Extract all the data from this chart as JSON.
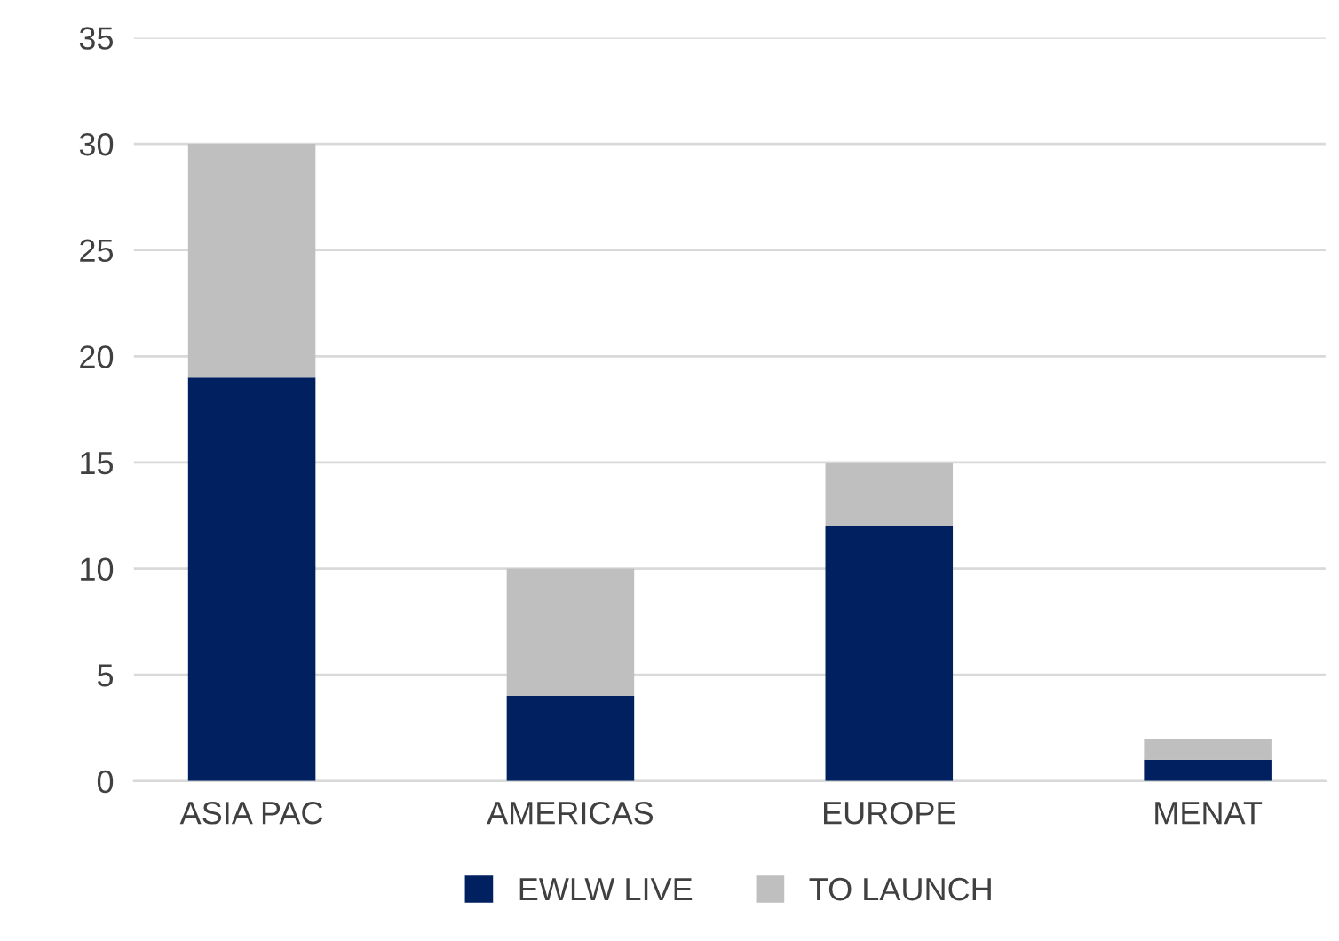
{
  "chart_data": {
    "type": "bar",
    "stacked": true,
    "categories": [
      "ASIA PAC",
      "AMERICAS",
      "EUROPE",
      "MENAT"
    ],
    "series": [
      {
        "name": "EWLW LIVE",
        "color": "#002060",
        "values": [
          19,
          4,
          12,
          1
        ]
      },
      {
        "name": "TO LAUNCH",
        "color": "#bfbfbf",
        "values": [
          11,
          6,
          3,
          1
        ]
      }
    ],
    "ylim": [
      0,
      35
    ],
    "yticks": [
      0,
      5,
      10,
      15,
      20,
      25,
      30,
      35
    ],
    "grid": "y",
    "legend": "bottom"
  }
}
